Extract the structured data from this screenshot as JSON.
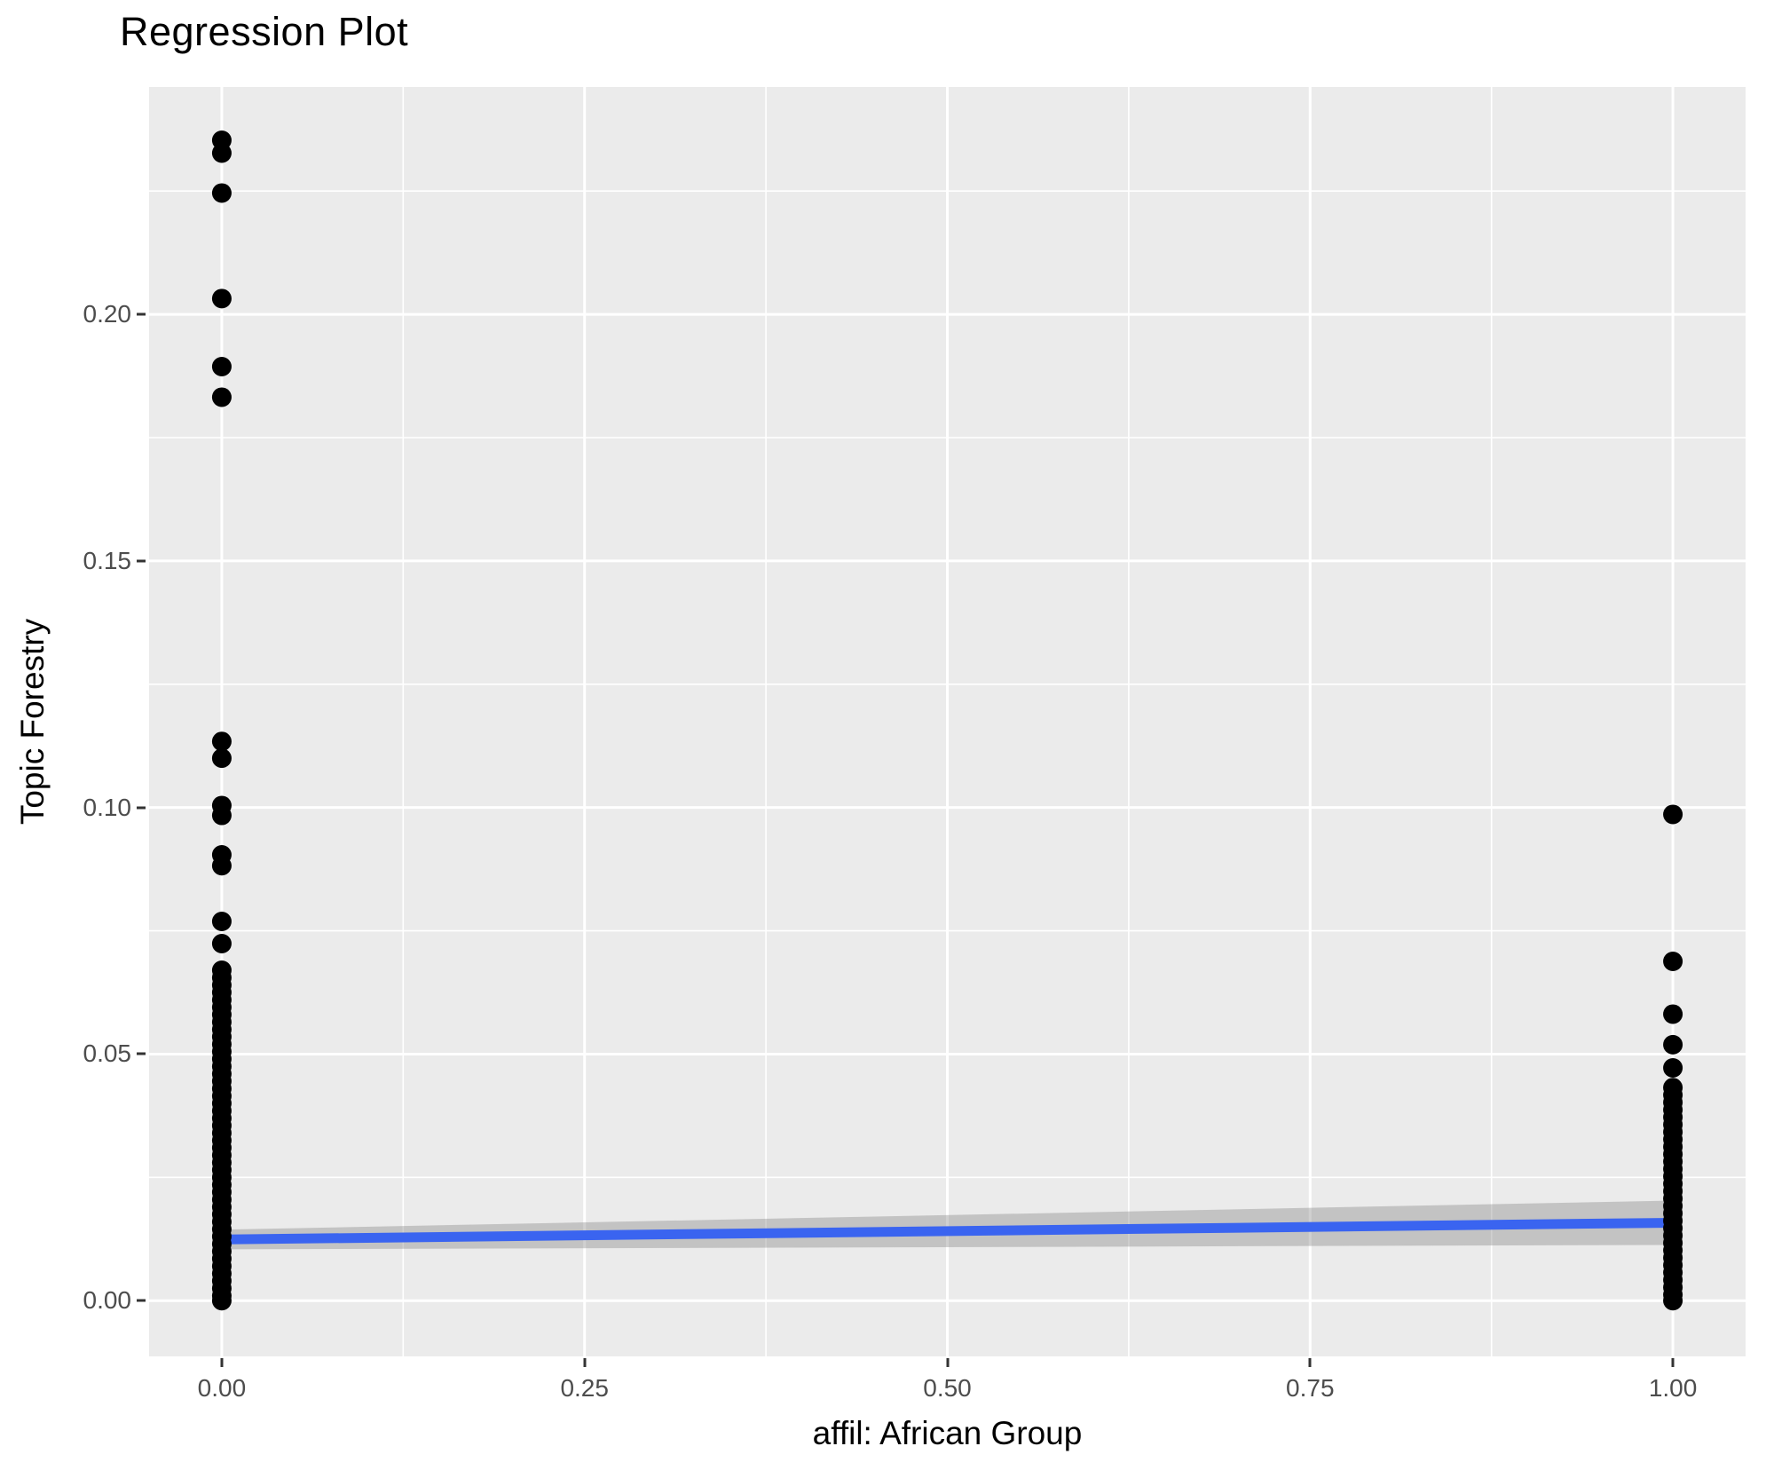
{
  "title": "Regression Plot",
  "chart_data": {
    "type": "scatter",
    "title": "Regression Plot",
    "xlabel": "affil: African Group",
    "ylabel": "Topic Forestry",
    "x_ticks": [
      "0.00",
      "0.25",
      "0.50",
      "0.75",
      "1.00"
    ],
    "x_tick_values": [
      0,
      0.25,
      0.5,
      0.75,
      1
    ],
    "y_ticks": [
      "0.00",
      "0.05",
      "0.10",
      "0.15",
      "0.20"
    ],
    "y_tick_values": [
      0,
      0.05,
      0.1,
      0.15,
      0.2
    ],
    "x_minor_gridlines": [
      0.125,
      0.375,
      0.625,
      0.875
    ],
    "y_minor_gridlines": [
      0.025,
      0.075,
      0.125,
      0.175,
      0.225
    ],
    "xlim": [
      -0.0501,
      1.0501
    ],
    "ylim": [
      -0.0113,
      0.2461
    ],
    "grid": "major-and-minor-white-on-grey",
    "legend": "none",
    "series": [
      {
        "name": "affil = 0",
        "x": 0,
        "y": [
          0.2353,
          0.2327,
          0.2246,
          0.2032,
          0.1894,
          0.1832,
          0.1134,
          0.11,
          0.1004,
          0.0984,
          0.0904,
          0.0882,
          0.0769,
          0.0724,
          0.067,
          0.0655,
          0.064,
          0.0625,
          0.061,
          0.0595,
          0.058,
          0.0565,
          0.055,
          0.0535,
          0.052,
          0.0505,
          0.049,
          0.0475,
          0.046,
          0.0445,
          0.043,
          0.0415,
          0.04,
          0.0385,
          0.037,
          0.0355,
          0.034,
          0.0325,
          0.031,
          0.0295,
          0.028,
          0.0265,
          0.025,
          0.0235,
          0.022,
          0.0205,
          0.019,
          0.0175,
          0.016,
          0.0145,
          0.013,
          0.0115,
          0.01,
          0.0085,
          0.007,
          0.0055,
          0.004,
          0.0025,
          0.001,
          0.0
        ]
      },
      {
        "name": "affil = 1",
        "x": 1,
        "y": [
          0.0986,
          0.0688,
          0.0581,
          0.0519,
          0.0472,
          0.0432,
          0.0417,
          0.0402,
          0.0387,
          0.0372,
          0.0357,
          0.0342,
          0.0327,
          0.0312,
          0.0297,
          0.0282,
          0.0267,
          0.0252,
          0.0237,
          0.0222,
          0.0207,
          0.0192,
          0.0177,
          0.0162,
          0.0147,
          0.0132,
          0.0117,
          0.0102,
          0.0087,
          0.0072,
          0.0057,
          0.0042,
          0.0027,
          0.0012,
          0.0
        ]
      }
    ],
    "regression_line": {
      "x": [
        0,
        1
      ],
      "y": [
        0.0124,
        0.0158
      ]
    },
    "confidence_band": {
      "x": [
        0,
        1
      ],
      "upper": [
        0.0144,
        0.0203
      ],
      "lower": [
        0.0104,
        0.0113
      ]
    },
    "colors": {
      "point": "#000000",
      "line": "#3A64F0",
      "band": "rgba(120,120,120,0.35)",
      "panel_bg": "#EBEBEB",
      "gridline": "#FFFFFF",
      "tick_label": "#4D4D4D",
      "tick_mark": "#333333",
      "text": "#000000"
    }
  }
}
